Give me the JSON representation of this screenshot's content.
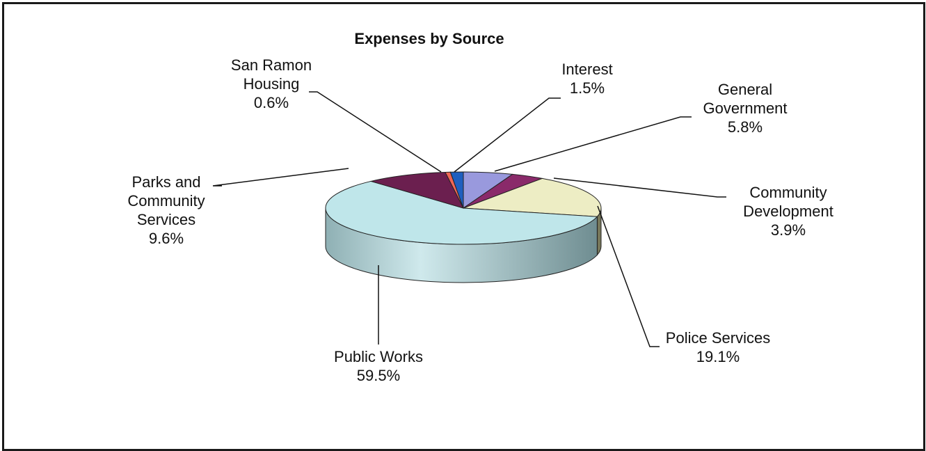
{
  "chart_data": {
    "type": "pie",
    "title": "Expenses by Source",
    "slices": [
      {
        "label_lines": [
          "General",
          "Government"
        ],
        "value": 5.8,
        "value_label": "5.8%",
        "color": "#9999dd"
      },
      {
        "label_lines": [
          "Community",
          "Development"
        ],
        "value": 3.9,
        "value_label": "3.9%",
        "color": "#8a2a6a"
      },
      {
        "label_lines": [
          "Police Services"
        ],
        "value": 19.1,
        "value_label": "19.1%",
        "color": "#ededc4"
      },
      {
        "label_lines": [
          "Public Works"
        ],
        "value": 59.5,
        "value_label": "59.5%",
        "color": "#bfe6ea"
      },
      {
        "label_lines": [
          "Parks and",
          "Community",
          "Services"
        ],
        "value": 9.6,
        "value_label": "9.6%",
        "color": "#6b1f4f"
      },
      {
        "label_lines": [
          "San Ramon",
          "Housing"
        ],
        "value": 0.6,
        "value_label": "0.6%",
        "color": "#ee6655"
      },
      {
        "label_lines": [
          "Interest"
        ],
        "value": 1.5,
        "value_label": "1.5%",
        "color": "#1e5fbf"
      }
    ]
  }
}
